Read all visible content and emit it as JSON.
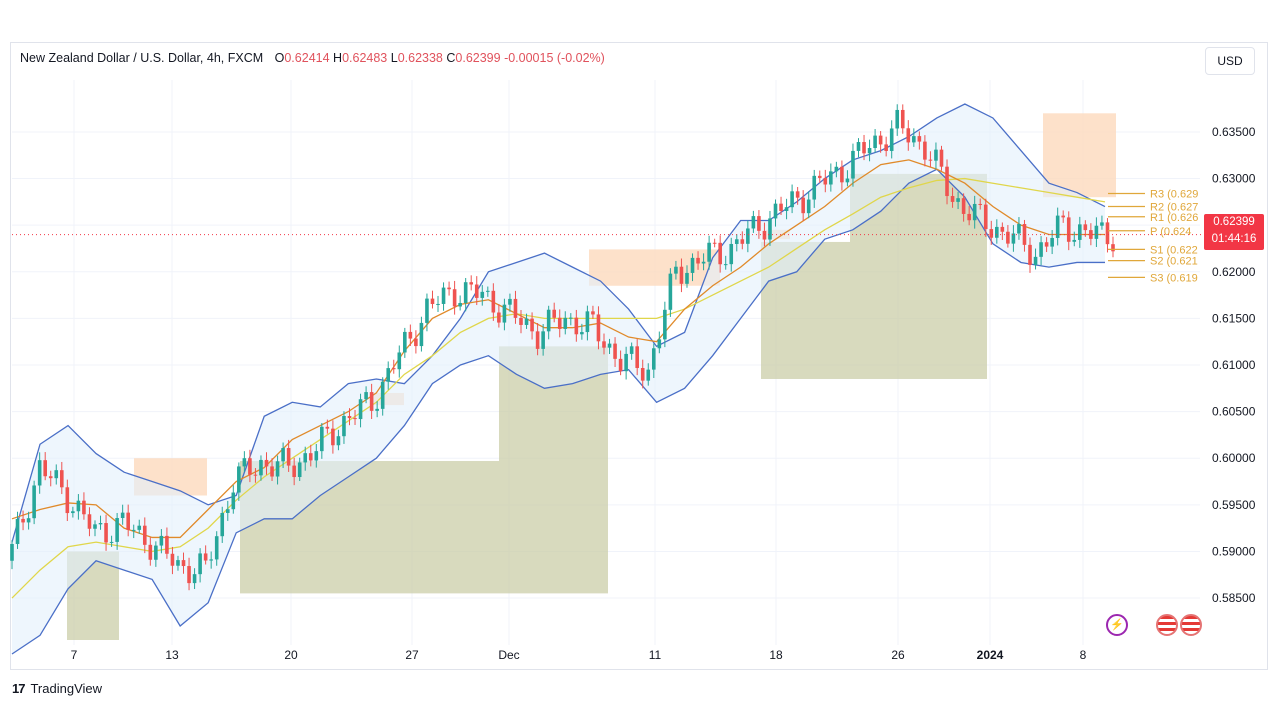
{
  "header": {
    "title": "New Zealand Dollar / U.S. Dollar, 4h, FXCM",
    "o_label": "O",
    "o": "0.62414",
    "h_label": "H",
    "h": "0.62483",
    "l_label": "L",
    "l": "0.62338",
    "c_label": "C",
    "c": "0.62399",
    "change": "-0.00015 (-0.02%)"
  },
  "currency_button": "USD",
  "last_price": {
    "value": "0.62399",
    "countdown": "01:44:16"
  },
  "footer": {
    "logo_mark": "17",
    "brand": "TradingView"
  },
  "icons": {
    "flash": "lightning-icon",
    "flag1": "us-flag-icon",
    "flag2": "us-flag-icon"
  },
  "chart_data": {
    "type": "candlestick",
    "interval": "4h",
    "ylim": [
      0.5805,
      0.6395
    ],
    "y_ticks": [
      "0.63500",
      "0.63000",
      "0.62500",
      "0.62000",
      "0.61500",
      "0.61000",
      "0.60500",
      "0.60000",
      "0.59500",
      "0.59000",
      "0.58500"
    ],
    "x_ticks": [
      "7",
      "13",
      "20",
      "27",
      "Dec",
      "11",
      "18",
      "26",
      "2024",
      "8"
    ],
    "grid": true,
    "colors": {
      "up": "#26a69a",
      "down": "#ef5350",
      "bb": "#4a6fc7",
      "ema_fast": "#e08a2a",
      "ema_slow": "#e0d64a",
      "pivot": "#e0a73a",
      "supply": "#fcd9bd",
      "demand": "#c8cba2"
    },
    "bollinger": {
      "upper": [
        0.591,
        0.6015,
        0.6035,
        0.6005,
        0.5985,
        0.5975,
        0.5965,
        0.595,
        0.596,
        0.6045,
        0.606,
        0.6055,
        0.608,
        0.6085,
        0.608,
        0.611,
        0.615,
        0.62,
        0.621,
        0.622,
        0.6205,
        0.619,
        0.616,
        0.612,
        0.6135,
        0.6215,
        0.6255,
        0.6255,
        0.6275,
        0.63,
        0.632,
        0.633,
        0.6345,
        0.6365,
        0.638,
        0.6365,
        0.633,
        0.6295,
        0.6285,
        0.627
      ],
      "lower": [
        0.579,
        0.581,
        0.586,
        0.589,
        0.588,
        0.587,
        0.582,
        0.5845,
        0.592,
        0.5935,
        0.5935,
        0.596,
        0.598,
        0.6,
        0.6035,
        0.608,
        0.61,
        0.611,
        0.609,
        0.6075,
        0.608,
        0.609,
        0.6095,
        0.606,
        0.6075,
        0.611,
        0.615,
        0.619,
        0.62,
        0.6235,
        0.6245,
        0.6265,
        0.6295,
        0.631,
        0.628,
        0.623,
        0.621,
        0.6205,
        0.621,
        0.621
      ]
    },
    "ema_fast": [
      0.5935,
      0.5945,
      0.5952,
      0.595,
      0.5925,
      0.5915,
      0.5915,
      0.5945,
      0.5975,
      0.599,
      0.602,
      0.6035,
      0.605,
      0.607,
      0.6115,
      0.615,
      0.6165,
      0.617,
      0.6155,
      0.614,
      0.614,
      0.6145,
      0.613,
      0.6125,
      0.616,
      0.6185,
      0.6205,
      0.623,
      0.625,
      0.627,
      0.6295,
      0.6315,
      0.632,
      0.631,
      0.6295,
      0.627,
      0.625,
      0.624,
      0.624,
      0.624
    ],
    "ema_slow": [
      0.585,
      0.588,
      0.5905,
      0.591,
      0.5905,
      0.59,
      0.5905,
      0.5925,
      0.5955,
      0.598,
      0.6,
      0.602,
      0.604,
      0.606,
      0.609,
      0.611,
      0.6135,
      0.615,
      0.6155,
      0.615,
      0.615,
      0.615,
      0.615,
      0.615,
      0.616,
      0.6175,
      0.619,
      0.6205,
      0.6225,
      0.6245,
      0.6262,
      0.628,
      0.629,
      0.6298,
      0.63,
      0.6295,
      0.629,
      0.6285,
      0.628,
      0.6275
    ],
    "candles_close": [
      0.59,
      0.599,
      0.596,
      0.592,
      0.593,
      0.591,
      0.5885,
      0.588,
      0.5975,
      0.5995,
      0.599,
      0.601,
      0.604,
      0.606,
      0.611,
      0.616,
      0.618,
      0.6175,
      0.6155,
      0.6135,
      0.615,
      0.614,
      0.6105,
      0.6095,
      0.62,
      0.6215,
      0.6225,
      0.625,
      0.627,
      0.629,
      0.631,
      0.6335,
      0.6355,
      0.6335,
      0.628,
      0.6255,
      0.624,
      0.622,
      0.625,
      0.624
    ],
    "pivots": [
      {
        "label": "R3 (0.629",
        "value": 0.6284
      },
      {
        "label": "R2 (0.627",
        "value": 0.627
      },
      {
        "label": "R1 (0.626",
        "value": 0.6259
      },
      {
        "label": "P (0.624",
        "value": 0.6244
      },
      {
        "label": "S1 (0.622",
        "value": 0.6224
      },
      {
        "label": "S2 (0.621",
        "value": 0.6212
      },
      {
        "label": "S3 (0.619",
        "value": 0.6194
      }
    ],
    "supply_zones": [
      {
        "from": 0.596,
        "to": 0.6
      },
      {
        "from": 0.6057,
        "to": 0.607
      },
      {
        "from": 0.6185,
        "to": 0.6224
      },
      {
        "from": 0.6235,
        "to": 0.6245
      },
      {
        "from": 0.628,
        "to": 0.637
      }
    ],
    "demand_zones": [
      {
        "from": 0.5805,
        "to": 0.59
      },
      {
        "from": 0.5855,
        "to": 0.5997
      },
      {
        "from": 0.5855,
        "to": 0.612
      },
      {
        "from": 0.6085,
        "to": 0.6232
      },
      {
        "from": 0.6085,
        "to": 0.6305
      }
    ]
  }
}
